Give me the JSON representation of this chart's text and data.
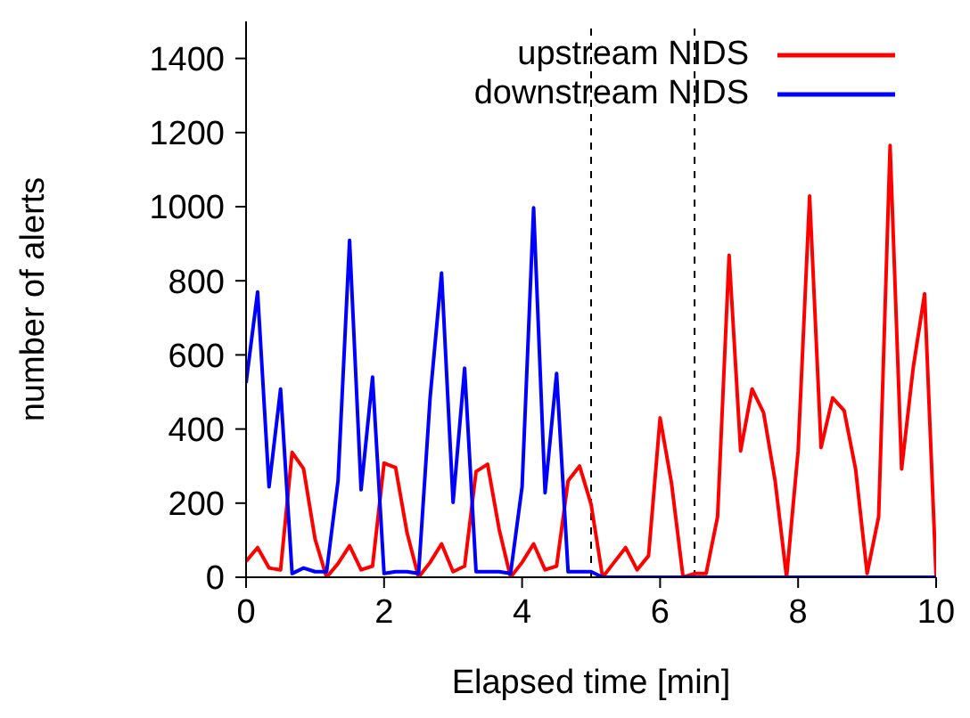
{
  "chart_data": {
    "type": "line",
    "xlabel": "Elapsed time [min]",
    "ylabel": "number of alerts",
    "x": [
      0,
      0.167,
      0.333,
      0.5,
      0.667,
      0.833,
      1,
      1.167,
      1.333,
      1.5,
      1.667,
      1.833,
      2,
      2.167,
      2.333,
      2.5,
      2.667,
      2.833,
      3,
      3.167,
      3.333,
      3.5,
      3.667,
      3.833,
      4,
      4.167,
      4.333,
      4.5,
      4.667,
      4.833,
      5,
      5.167,
      5.333,
      5.5,
      5.667,
      5.833,
      6,
      6.167,
      6.333,
      6.5,
      6.667,
      6.833,
      7,
      7.167,
      7.333,
      7.5,
      7.667,
      7.833,
      8,
      8.167,
      8.333,
      8.5,
      8.667,
      8.833,
      9,
      9.167,
      9.333,
      9.5,
      9.667,
      9.833,
      10
    ],
    "series": [
      {
        "name": "upstream NIDS",
        "color": "#ff0000",
        "values": [
          43,
          80,
          25,
          20,
          337,
          293,
          103,
          0,
          37,
          85,
          20,
          30,
          308,
          296,
          120,
          0,
          40,
          90,
          15,
          30,
          285,
          305,
          130,
          0,
          40,
          90,
          20,
          30,
          260,
          300,
          197,
          0,
          40,
          80,
          20,
          58,
          430,
          252,
          0,
          10,
          10,
          163,
          869,
          341,
          508,
          444,
          260,
          0,
          341,
          1029,
          350,
          484,
          450,
          292,
          10,
          163,
          1165,
          292,
          564,
          765,
          0
        ]
      },
      {
        "name": "downstream NIDS",
        "color": "#0000ff",
        "values": [
          524,
          770,
          244,
          508,
          10,
          25,
          15,
          15,
          260,
          909,
          236,
          540,
          10,
          15,
          15,
          10,
          484,
          821,
          202,
          564,
          15,
          15,
          15,
          10,
          244,
          997,
          228,
          550,
          15,
          15,
          15,
          0,
          0,
          0,
          0,
          0,
          0,
          0,
          0,
          0,
          0,
          0,
          0,
          0,
          0,
          0,
          0,
          0,
          0,
          0,
          0,
          0,
          0,
          0,
          0,
          0,
          0,
          0,
          0,
          0,
          0
        ]
      }
    ],
    "xlim": [
      0,
      10
    ],
    "xticks": [
      0,
      2,
      4,
      6,
      8,
      10
    ],
    "ylim": [
      0,
      1500
    ],
    "yticks": [
      0,
      200,
      400,
      600,
      800,
      1000,
      1200,
      1400
    ],
    "ref_lines": [
      {
        "axis": "x",
        "value": 5,
        "color": "#000000",
        "line_style": "dashed"
      },
      {
        "axis": "x",
        "value": 6.5,
        "color": "#000000",
        "line_style": "dashed"
      }
    ],
    "legend": "top right",
    "grid": false
  }
}
